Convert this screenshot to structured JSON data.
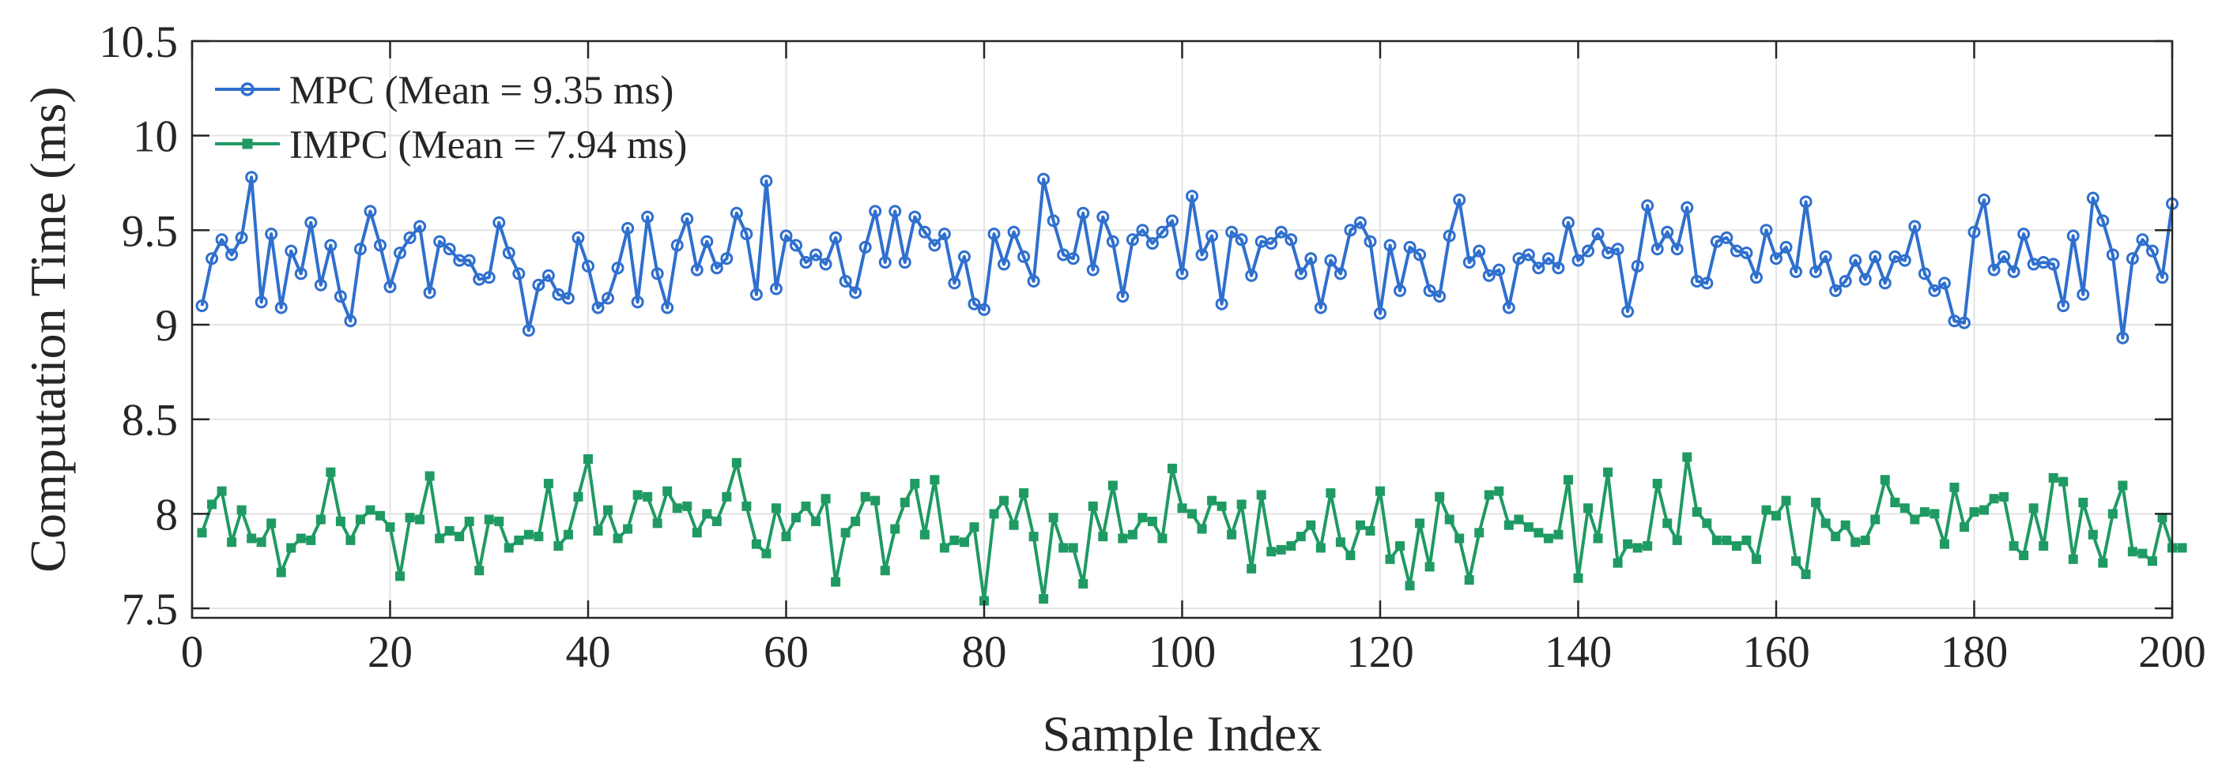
{
  "chart_data": {
    "type": "line",
    "title": "",
    "xlabel": "Sample Index",
    "ylabel": "Computation Time (ms)",
    "xlim": [
      0,
      200
    ],
    "ylim": [
      7.45,
      10.5
    ],
    "xticks": [
      "0",
      "20",
      "40",
      "60",
      "80",
      "100",
      "120",
      "140",
      "160",
      "180",
      "200"
    ],
    "yticks": [
      "7.5",
      "8",
      "8.5",
      "9",
      "9.5",
      "10",
      "10.5"
    ],
    "grid": true,
    "legend_position": "top-left",
    "series": [
      {
        "name": "MPC (Mean = 9.35 ms)",
        "color": "#2f6fce",
        "marker": "circle",
        "values": [
          9.1,
          9.35,
          9.45,
          9.37,
          9.46,
          9.78,
          9.12,
          9.48,
          9.09,
          9.39,
          9.27,
          9.54,
          9.21,
          9.42,
          9.15,
          9.02,
          9.4,
          9.6,
          9.42,
          9.2,
          9.38,
          9.46,
          9.52,
          9.17,
          9.44,
          9.4,
          9.34,
          9.34,
          9.24,
          9.25,
          9.54,
          9.38,
          9.27,
          8.97,
          9.21,
          9.26,
          9.16,
          9.14,
          9.46,
          9.31,
          9.09,
          9.14,
          9.3,
          9.51,
          9.12,
          9.57,
          9.27,
          9.09,
          9.42,
          9.56,
          9.29,
          9.44,
          9.3,
          9.35,
          9.59,
          9.48,
          9.16,
          9.76,
          9.19,
          9.47,
          9.42,
          9.33,
          9.37,
          9.32,
          9.46,
          9.23,
          9.17,
          9.41,
          9.6,
          9.33,
          9.6,
          9.33,
          9.57,
          9.49,
          9.42,
          9.48,
          9.22,
          9.36,
          9.11,
          9.08,
          9.48,
          9.32,
          9.49,
          9.36,
          9.23,
          9.77,
          9.55,
          9.37,
          9.35,
          9.59,
          9.29,
          9.57,
          9.44,
          9.15,
          9.45,
          9.5,
          9.43,
          9.49,
          9.55,
          9.27,
          9.68,
          9.37,
          9.47,
          9.11,
          9.49,
          9.45,
          9.26,
          9.44,
          9.43,
          9.49,
          9.45,
          9.27,
          9.35,
          9.09,
          9.34,
          9.27,
          9.5,
          9.54,
          9.44,
          9.06,
          9.42,
          9.18,
          9.41,
          9.37,
          9.18,
          9.15,
          9.47,
          9.66,
          9.33,
          9.39,
          9.26,
          9.29,
          9.09,
          9.35,
          9.37,
          9.3,
          9.35,
          9.3,
          9.54,
          9.34,
          9.39,
          9.48,
          9.38,
          9.4,
          9.07,
          9.31,
          9.63,
          9.4,
          9.49,
          9.4,
          9.62,
          9.23,
          9.22,
          9.44,
          9.46,
          9.39,
          9.38,
          9.25,
          9.5,
          9.35,
          9.41,
          9.28,
          9.65,
          9.28,
          9.36,
          9.18,
          9.23,
          9.34,
          9.24,
          9.36,
          9.22,
          9.36,
          9.34,
          9.52,
          9.27,
          9.18,
          9.22,
          9.02,
          9.01,
          9.49,
          9.66,
          9.29,
          9.36,
          9.28,
          9.48,
          9.32,
          9.33,
          9.32,
          9.1,
          9.47,
          9.16,
          9.67,
          9.55,
          9.37,
          8.93,
          9.35,
          9.45,
          9.39,
          9.25,
          9.64
        ]
      },
      {
        "name": "IMPC (Mean = 7.94 ms)",
        "color": "#1f9a63",
        "marker": "square",
        "values": [
          7.9,
          8.05,
          8.12,
          7.85,
          8.02,
          7.87,
          7.85,
          7.95,
          7.69,
          7.82,
          7.87,
          7.86,
          7.97,
          8.22,
          7.96,
          7.86,
          7.97,
          8.02,
          7.99,
          7.93,
          7.67,
          7.98,
          7.97,
          8.2,
          7.87,
          7.91,
          7.88,
          7.96,
          7.7,
          7.97,
          7.96,
          7.82,
          7.86,
          7.89,
          7.88,
          8.16,
          7.83,
          7.89,
          8.09,
          8.29,
          7.91,
          8.02,
          7.87,
          7.92,
          8.1,
          8.09,
          7.95,
          8.12,
          8.03,
          8.04,
          7.9,
          8.0,
          7.96,
          8.09,
          8.27,
          8.04,
          7.84,
          7.79,
          8.03,
          7.88,
          7.98,
          8.04,
          7.96,
          8.08,
          7.64,
          7.9,
          7.96,
          8.09,
          8.07,
          7.7,
          7.92,
          8.06,
          8.16,
          7.89,
          8.18,
          7.82,
          7.86,
          7.85,
          7.93,
          7.54,
          8.0,
          8.07,
          7.94,
          8.11,
          7.88,
          7.55,
          7.98,
          7.82,
          7.82,
          7.63,
          8.04,
          7.88,
          8.15,
          7.87,
          7.89,
          7.98,
          7.96,
          7.87,
          8.24,
          8.03,
          8.0,
          7.92,
          8.07,
          8.04,
          7.89,
          8.05,
          7.71,
          8.1,
          7.8,
          7.81,
          7.83,
          7.88,
          7.94,
          7.82,
          8.11,
          7.85,
          7.78,
          7.94,
          7.91,
          8.12,
          7.76,
          7.83,
          7.62,
          7.95,
          7.72,
          8.09,
          7.97,
          7.87,
          7.65,
          7.9,
          8.1,
          8.12,
          7.94,
          7.97,
          7.93,
          7.9,
          7.87,
          7.89,
          8.18,
          7.66,
          8.03,
          7.87,
          8.22,
          7.74,
          7.84,
          7.82,
          7.83,
          8.16,
          7.95,
          7.86,
          8.3,
          8.01,
          7.95,
          7.86,
          7.86,
          7.83,
          7.86,
          7.76,
          8.02,
          7.99,
          8.07,
          7.75,
          7.68,
          8.06,
          7.95,
          7.88,
          7.94,
          7.85,
          7.86,
          7.97,
          8.18,
          8.06,
          8.03,
          7.97,
          8.01,
          8.0,
          7.84,
          8.14,
          7.93,
          8.01,
          8.02,
          8.08,
          8.09,
          7.83,
          7.78,
          8.03,
          7.83,
          8.19,
          8.17,
          7.76,
          8.06,
          7.89,
          7.74,
          8.0,
          8.15,
          7.8,
          7.79,
          7.75,
          7.98,
          7.82,
          7.82
        ]
      }
    ]
  }
}
